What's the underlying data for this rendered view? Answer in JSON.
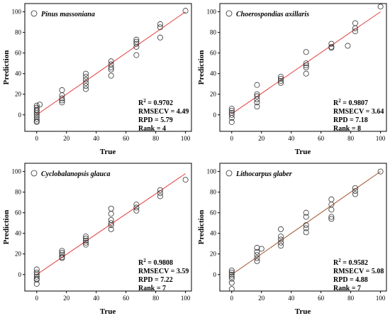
{
  "chart_data": [
    {
      "type": "scatter",
      "title": "",
      "legend": "Pinus massoniana",
      "legend_position": "top-left",
      "xlabel": "True",
      "ylabel": "Prediction",
      "xlim": [
        -8,
        104
      ],
      "ylim": [
        -16,
        108
      ],
      "xticks": [
        0,
        20,
        40,
        60,
        80,
        100
      ],
      "yticks": [
        0,
        20,
        40,
        60,
        80,
        100
      ],
      "fit_color": "#e33b3b",
      "fit_line": {
        "x": [
          0,
          100
        ],
        "y": [
          0,
          100
        ]
      },
      "stats": {
        "r2": "0.9702",
        "rmsecv": "RMSECV = 4.49",
        "rpd": "RPD = 5.79",
        "rank": "Rank = 4"
      },
      "points": [
        [
          0,
          9
        ],
        [
          0,
          7
        ],
        [
          0,
          5
        ],
        [
          0,
          4
        ],
        [
          0,
          2
        ],
        [
          0,
          0
        ],
        [
          0,
          -2
        ],
        [
          0,
          -4
        ],
        [
          0,
          -6
        ],
        [
          0,
          -7
        ],
        [
          2,
          10
        ],
        [
          17,
          24
        ],
        [
          17,
          19
        ],
        [
          17,
          16
        ],
        [
          17,
          14
        ],
        [
          17,
          12
        ],
        [
          33,
          40
        ],
        [
          33,
          37
        ],
        [
          33,
          34
        ],
        [
          33,
          31
        ],
        [
          33,
          28
        ],
        [
          33,
          25
        ],
        [
          50,
          52
        ],
        [
          50,
          49
        ],
        [
          50,
          46
        ],
        [
          50,
          44
        ],
        [
          50,
          38
        ],
        [
          67,
          73
        ],
        [
          67,
          71
        ],
        [
          67,
          69
        ],
        [
          67,
          66
        ],
        [
          67,
          58
        ],
        [
          83,
          88
        ],
        [
          83,
          85
        ],
        [
          83,
          75
        ],
        [
          100,
          101
        ]
      ]
    },
    {
      "type": "scatter",
      "title": "",
      "legend": "Choerospondias axillaris",
      "legend_position": "top-left",
      "xlabel": "True",
      "ylabel": "Prediction",
      "xlim": [
        -8,
        104
      ],
      "ylim": [
        -16,
        108
      ],
      "xticks": [
        0,
        20,
        40,
        60,
        80,
        100
      ],
      "yticks": [
        0,
        20,
        40,
        60,
        80,
        100
      ],
      "fit_color": "#e33b3b",
      "fit_line": {
        "x": [
          0,
          100
        ],
        "y": [
          1,
          100
        ]
      },
      "stats": {
        "r2": "0.9807",
        "rmsecv": "RMSECV = 3.64",
        "rpd": "RPD = 7.18",
        "rank": "Rank = 8"
      },
      "points": [
        [
          0,
          6
        ],
        [
          0,
          4
        ],
        [
          0,
          2
        ],
        [
          0,
          0
        ],
        [
          0,
          -3
        ],
        [
          0,
          -7
        ],
        [
          17,
          29
        ],
        [
          17,
          20
        ],
        [
          17,
          18
        ],
        [
          17,
          15
        ],
        [
          17,
          12
        ],
        [
          17,
          8
        ],
        [
          33,
          37
        ],
        [
          33,
          35
        ],
        [
          33,
          33
        ],
        [
          33,
          31
        ],
        [
          50,
          61
        ],
        [
          50,
          50
        ],
        [
          50,
          48
        ],
        [
          50,
          46
        ],
        [
          50,
          40
        ],
        [
          67,
          69
        ],
        [
          67,
          66
        ],
        [
          67,
          65
        ],
        [
          78,
          67
        ],
        [
          83,
          89
        ],
        [
          83,
          84
        ],
        [
          83,
          81
        ],
        [
          100,
          105
        ]
      ]
    },
    {
      "type": "scatter",
      "title": "",
      "legend": "Cyclobalanopsis glauca",
      "legend_position": "top-left",
      "xlabel": "True",
      "ylabel": "Prediction",
      "xlim": [
        -8,
        104
      ],
      "ylim": [
        -16,
        108
      ],
      "xticks": [
        0,
        20,
        40,
        60,
        80,
        100
      ],
      "yticks": [
        0,
        20,
        40,
        60,
        80,
        100
      ],
      "fit_color": "#e33b3b",
      "fit_line": {
        "x": [
          0,
          100
        ],
        "y": [
          0,
          98
        ]
      },
      "stats": {
        "r2": "0.9808",
        "rmsecv": "RMSECV = 3.59",
        "rpd": "RPD = 7.22",
        "rank": "Rank = 7"
      },
      "points": [
        [
          0,
          5
        ],
        [
          0,
          2
        ],
        [
          0,
          0
        ],
        [
          0,
          -2
        ],
        [
          0,
          -4
        ],
        [
          0,
          -5
        ],
        [
          0,
          -9
        ],
        [
          17,
          23
        ],
        [
          17,
          21
        ],
        [
          17,
          19
        ],
        [
          17,
          17
        ],
        [
          17,
          16
        ],
        [
          33,
          37
        ],
        [
          33,
          35
        ],
        [
          33,
          33
        ],
        [
          33,
          31
        ],
        [
          33,
          29
        ],
        [
          50,
          64
        ],
        [
          50,
          59
        ],
        [
          50,
          53
        ],
        [
          50,
          50
        ],
        [
          50,
          48
        ],
        [
          50,
          44
        ],
        [
          67,
          68
        ],
        [
          67,
          65
        ],
        [
          67,
          62
        ],
        [
          83,
          82
        ],
        [
          83,
          79
        ],
        [
          83,
          76
        ],
        [
          100,
          92
        ]
      ]
    },
    {
      "type": "scatter",
      "title": "",
      "legend": "Lithocarpus glaber",
      "legend_position": "top-left",
      "xlabel": "True",
      "ylabel": "Prediction",
      "xlim": [
        -8,
        104
      ],
      "ylim": [
        -16,
        108
      ],
      "xticks": [
        0,
        20,
        40,
        60,
        80,
        100
      ],
      "yticks": [
        0,
        20,
        40,
        60,
        80,
        100
      ],
      "fit_color": "#a0522d",
      "fit_line": {
        "x": [
          0,
          100
        ],
        "y": [
          0,
          100
        ]
      },
      "stats": {
        "r2": "0.9582",
        "rmsecv": "RMSECV = 5.08",
        "rpd": "RPD = 4.88",
        "rank": "Rank = 7"
      },
      "points": [
        [
          0,
          4
        ],
        [
          0,
          2
        ],
        [
          0,
          0
        ],
        [
          0,
          -2
        ],
        [
          0,
          -4
        ],
        [
          0,
          -8
        ],
        [
          0,
          -14
        ],
        [
          17,
          26
        ],
        [
          17,
          22
        ],
        [
          17,
          19
        ],
        [
          17,
          16
        ],
        [
          17,
          13
        ],
        [
          20,
          25
        ],
        [
          33,
          44
        ],
        [
          33,
          37
        ],
        [
          33,
          34
        ],
        [
          33,
          31
        ],
        [
          33,
          28
        ],
        [
          50,
          60
        ],
        [
          50,
          56
        ],
        [
          50,
          48
        ],
        [
          50,
          45
        ],
        [
          50,
          41
        ],
        [
          67,
          73
        ],
        [
          67,
          68
        ],
        [
          67,
          63
        ],
        [
          67,
          56
        ],
        [
          67,
          54
        ],
        [
          83,
          84
        ],
        [
          83,
          81
        ],
        [
          83,
          78
        ],
        [
          100,
          100
        ]
      ]
    }
  ]
}
